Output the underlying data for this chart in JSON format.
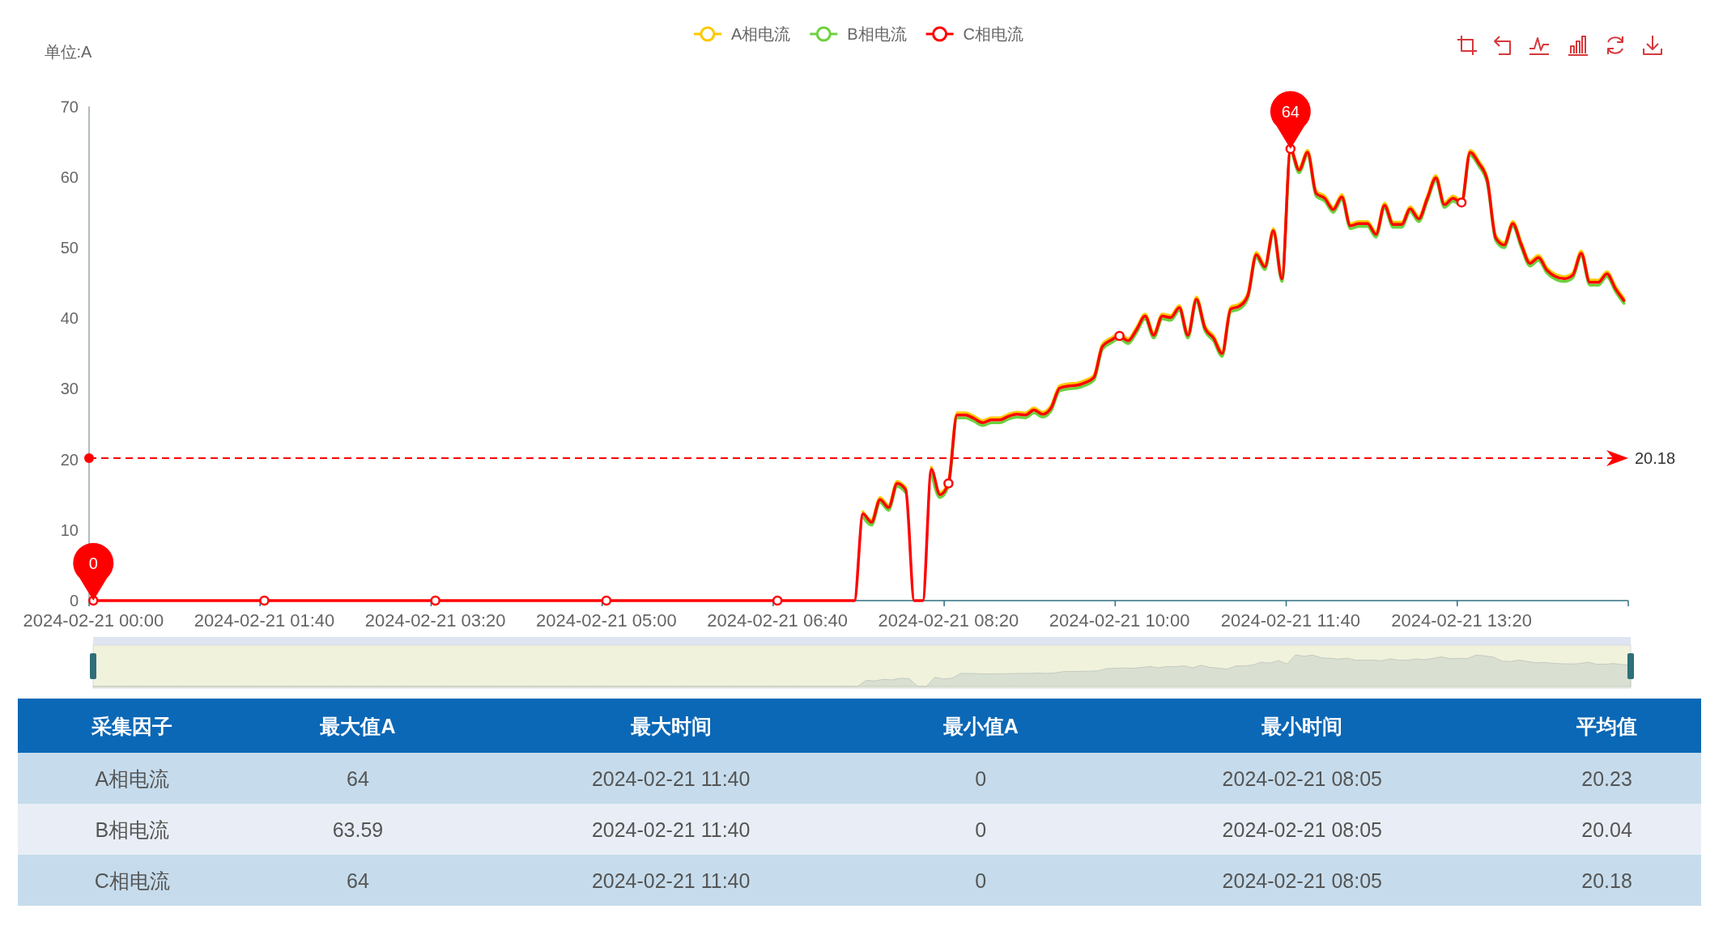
{
  "chart_data": [
    {
      "type": "line",
      "ylabel": "单位:A",
      "categories": [
        "2024-02-21 00:00",
        null,
        null,
        null,
        null,
        null,
        null,
        null,
        null,
        null,
        null,
        null,
        null,
        null,
        null,
        null,
        null,
        null,
        null,
        null,
        "2024-02-21 01:40",
        null,
        null,
        null,
        null,
        null,
        null,
        null,
        null,
        null,
        null,
        null,
        null,
        null,
        null,
        null,
        null,
        null,
        null,
        null,
        "2024-02-21 03:20",
        null,
        null,
        null,
        null,
        null,
        null,
        null,
        null,
        null,
        null,
        null,
        null,
        null,
        null,
        null,
        null,
        null,
        null,
        null,
        "2024-02-21 05:00",
        null,
        null,
        null,
        null,
        null,
        null,
        null,
        null,
        null,
        null,
        null,
        null,
        null,
        null,
        null,
        null,
        null,
        null,
        null,
        "2024-02-21 06:40",
        null,
        null,
        null,
        null,
        null,
        null,
        null,
        null,
        null,
        null,
        null,
        null,
        null,
        null,
        null,
        null,
        null,
        null,
        null,
        "2024-02-21 08:20",
        null,
        null,
        null,
        null,
        null,
        null,
        null,
        null,
        null,
        null,
        null,
        null,
        null,
        null,
        null,
        null,
        null,
        null,
        null,
        "2024-02-21 10:00",
        null,
        null,
        null,
        null,
        null,
        null,
        null,
        null,
        null,
        null,
        null,
        null,
        null,
        null,
        null,
        null,
        null,
        null,
        null,
        "2024-02-21 11:40",
        null,
        null,
        null,
        null,
        null,
        null,
        null,
        null,
        null,
        null,
        null,
        null,
        null,
        null,
        null,
        null,
        null,
        null,
        null,
        "2024-02-21 13:20",
        null,
        null,
        null,
        null,
        null,
        null,
        null,
        null,
        null,
        null,
        null,
        null,
        null,
        null,
        null,
        null,
        null,
        null,
        null
      ],
      "series": [
        {
          "name": "A相电流",
          "color": "#fcc800",
          "values": [
            null,
            null,
            null,
            null,
            null,
            null,
            null,
            null,
            null,
            null,
            null,
            null,
            null,
            null,
            null,
            null,
            null,
            null,
            null,
            null,
            null,
            null,
            null,
            null,
            null,
            null,
            null,
            null,
            null,
            null,
            null,
            null,
            null,
            null,
            null,
            null,
            null,
            null,
            null,
            null,
            null,
            null,
            null,
            null,
            null,
            null,
            null,
            null,
            null,
            null,
            null,
            null,
            null,
            null,
            null,
            null,
            null,
            null,
            null,
            null,
            null,
            null,
            null,
            null,
            null,
            null,
            null,
            null,
            null,
            null,
            null,
            null,
            null,
            null,
            null,
            null,
            null,
            null,
            null,
            null,
            null,
            null,
            null,
            null,
            null,
            null,
            null,
            null,
            null,
            null,
            12.6,
            11.4,
            14.6,
            13.5,
            16.9,
            16.0,
            null,
            null,
            18.9,
            15.3,
            16.9,
            26.6,
            26.6,
            26.1,
            25.5,
            25.9,
            25.9,
            26.4,
            26.7,
            26.6,
            27.3,
            26.7,
            27.6,
            30.4,
            30.7,
            30.8,
            31.2,
            31.9,
            36.3,
            37.2,
            37.8,
            37.1,
            38.7,
            40.6,
            37.9,
            40.6,
            40.4,
            41.8,
            37.9,
            43.0,
            38.9,
            37.5,
            35.3,
            41.6,
            42.0,
            43.5,
            49.3,
            47.6,
            52.7,
            45.9,
            64,
            61.3,
            63.8,
            58.0,
            57.3,
            55.7,
            57.5,
            53.4,
            53.7,
            53.7,
            52.2,
            56.3,
            53.6,
            53.6,
            55.8,
            54.4,
            57.3,
            60.2,
            56.4,
            57.3,
            56.7,
            63.8,
            62.3,
            59.9,
            51.7,
            50.7,
            53.7,
            50.7,
            48.1,
            48.9,
            47.1,
            46.2,
            45.9,
            46.4,
            49.5,
            45.4,
            45.4,
            46.6,
            44.5,
            42.8
          ]
        },
        {
          "name": "B相电流",
          "color": "#6dd13f",
          "values": [
            null,
            null,
            null,
            null,
            null,
            null,
            null,
            null,
            null,
            null,
            null,
            null,
            null,
            null,
            null,
            null,
            null,
            null,
            null,
            null,
            null,
            null,
            null,
            null,
            null,
            null,
            null,
            null,
            null,
            null,
            null,
            null,
            null,
            null,
            null,
            null,
            null,
            null,
            null,
            null,
            null,
            null,
            null,
            null,
            null,
            null,
            null,
            null,
            null,
            null,
            null,
            null,
            null,
            null,
            null,
            null,
            null,
            null,
            null,
            null,
            null,
            null,
            null,
            null,
            null,
            null,
            null,
            null,
            null,
            null,
            null,
            null,
            null,
            null,
            null,
            null,
            null,
            null,
            null,
            null,
            null,
            null,
            null,
            null,
            null,
            null,
            null,
            null,
            null,
            null,
            11.9,
            10.7,
            13.9,
            12.8,
            16.2,
            15.3,
            null,
            null,
            18.2,
            14.6,
            16.2,
            25.9,
            25.9,
            25.4,
            24.8,
            25.2,
            25.2,
            25.7,
            26.0,
            25.9,
            26.6,
            26.0,
            26.9,
            29.7,
            30.0,
            30.1,
            30.5,
            31.2,
            35.6,
            36.5,
            37.1,
            36.4,
            38.0,
            39.9,
            37.2,
            39.9,
            39.7,
            41.1,
            37.2,
            42.3,
            38.2,
            36.8,
            34.6,
            40.9,
            41.3,
            42.8,
            48.6,
            46.9,
            52.0,
            45.2,
            63.6,
            60.6,
            63.1,
            57.3,
            56.6,
            55.0,
            56.8,
            52.7,
            53.0,
            53.0,
            51.5,
            55.6,
            52.9,
            52.9,
            55.1,
            53.7,
            56.6,
            59.5,
            55.7,
            56.6,
            56.0,
            63.1,
            61.6,
            59.2,
            51.0,
            50.0,
            53.0,
            50.0,
            47.4,
            48.2,
            46.4,
            45.5,
            45.2,
            45.7,
            48.8,
            44.7,
            44.7,
            45.9,
            43.8,
            42.1
          ]
        },
        {
          "name": "C相电流",
          "color": "#ff0000",
          "values": [
            0,
            0,
            0,
            0,
            0,
            0,
            0,
            0,
            0,
            0,
            0,
            0,
            0,
            0,
            0,
            0,
            0,
            0,
            0,
            0,
            0,
            0,
            0,
            0,
            0,
            0,
            0,
            0,
            0,
            0,
            0,
            0,
            0,
            0,
            0,
            0,
            0,
            0,
            0,
            0,
            0,
            0,
            0,
            0,
            0,
            0,
            0,
            0,
            0,
            0,
            0,
            0,
            0,
            0,
            0,
            0,
            0,
            0,
            0,
            0,
            0,
            0,
            0,
            0,
            0,
            0,
            0,
            0,
            0,
            0,
            0,
            0,
            0,
            0,
            0,
            0,
            0,
            0,
            0,
            0,
            0,
            0,
            0,
            0,
            0,
            0,
            0,
            0,
            0,
            0,
            12.3,
            11.1,
            14.3,
            13.2,
            16.6,
            15.7,
            0,
            0,
            18.6,
            15.0,
            16.6,
            26.3,
            26.3,
            25.8,
            25.2,
            25.6,
            25.6,
            26.1,
            26.4,
            26.3,
            27.0,
            26.4,
            27.3,
            30.1,
            30.4,
            30.5,
            30.9,
            31.6,
            36.0,
            36.9,
            37.5,
            36.8,
            38.4,
            40.3,
            37.6,
            40.3,
            40.1,
            41.5,
            37.6,
            42.7,
            38.6,
            37.2,
            35.0,
            41.3,
            41.7,
            43.2,
            49.0,
            47.3,
            52.4,
            45.6,
            64,
            61.0,
            63.5,
            57.7,
            57.0,
            55.4,
            57.2,
            53.1,
            53.4,
            53.4,
            51.9,
            56.0,
            53.3,
            53.3,
            55.5,
            54.1,
            57.0,
            59.9,
            56.1,
            57.0,
            56.4,
            63.5,
            62.0,
            59.6,
            51.4,
            50.4,
            53.4,
            50.4,
            47.8,
            48.6,
            46.8,
            45.9,
            45.6,
            46.1,
            49.2,
            45.1,
            45.1,
            46.3,
            44.2,
            42.5
          ]
        },
        {
          "type": "scatter",
          "color": "#ff0000",
          "marker": "circle",
          "values": [
            0,
            null,
            null,
            null,
            null,
            null,
            null,
            null,
            null,
            null,
            null,
            null,
            null,
            null,
            null,
            null,
            null,
            null,
            null,
            null,
            0,
            null,
            null,
            null,
            null,
            null,
            null,
            null,
            null,
            null,
            null,
            null,
            null,
            null,
            null,
            null,
            null,
            null,
            null,
            null,
            0,
            null,
            null,
            null,
            null,
            null,
            null,
            null,
            null,
            null,
            null,
            null,
            null,
            null,
            null,
            null,
            null,
            null,
            null,
            null,
            0,
            null,
            null,
            null,
            null,
            null,
            null,
            null,
            null,
            null,
            null,
            null,
            null,
            null,
            null,
            null,
            null,
            null,
            null,
            null,
            0,
            null,
            null,
            null,
            null,
            null,
            null,
            null,
            null,
            null,
            null,
            null,
            null,
            null,
            null,
            null,
            null,
            null,
            null,
            null,
            16.6,
            null,
            null,
            null,
            null,
            null,
            null,
            null,
            null,
            null,
            null,
            null,
            null,
            null,
            null,
            null,
            null,
            null,
            null,
            null,
            37.5,
            null,
            null,
            null,
            null,
            null,
            null,
            null,
            null,
            null,
            null,
            null,
            null,
            null,
            null,
            null,
            null,
            null,
            null,
            null,
            64,
            null,
            null,
            null,
            null,
            null,
            null,
            null,
            null,
            null,
            null,
            null,
            null,
            null,
            null,
            null,
            null,
            null,
            null,
            null,
            56.4,
            null,
            null,
            null,
            null,
            null,
            null,
            null,
            null,
            null,
            null,
            null,
            null,
            null,
            null,
            null,
            null,
            null,
            null,
            null
          ]
        }
      ],
      "ylim": [
        0,
        70
      ],
      "yticks": [
        0,
        10,
        20,
        30,
        40,
        50,
        60,
        70
      ],
      "legend": "top",
      "ref_lines": [
        {
          "axis": "y",
          "value": 20.18,
          "label": "20.18",
          "color": "#ff0000",
          "line_style": "dashed"
        }
      ],
      "annotations": [
        {
          "text": "64",
          "x": "2024-02-21 11:40",
          "y": 64
        },
        {
          "text": "0",
          "x": "2024-02-21 00:00",
          "y": 0
        }
      ]
    },
    {
      "type": "other",
      "categories": [
        "采集因子",
        "最大值A",
        "最大时间",
        "最小值A",
        "最小时间",
        "平均值"
      ],
      "annotations": [
        "A相电流",
        "64",
        "2024-02-21 11:40",
        "0",
        "2024-02-21 08:05",
        "20.23",
        "B相电流",
        "63.59",
        "2024-02-21 11:40",
        "0",
        "2024-02-21 08:05",
        "20.04",
        "C相电流",
        "64",
        "2024-02-21 11:40",
        "0",
        "2024-02-21 08:05",
        "20.18"
      ]
    }
  ]
}
